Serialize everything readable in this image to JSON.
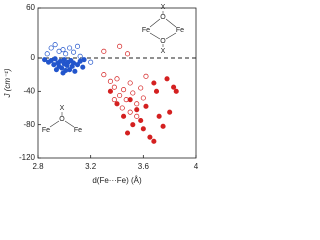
{
  "chart_data": {
    "type": "scatter",
    "xlabel": "d(Fe···Fe) (Å)",
    "ylabel": "J (cm⁻¹)",
    "xlim": [
      2.8,
      4.0
    ],
    "ylim": [
      -120,
      60
    ],
    "xticks": [
      2.8,
      3.2,
      3.6,
      {
        "value": 4.0,
        "label": "4"
      }
    ],
    "yticks": [
      -120,
      -80,
      -40,
      0,
      60
    ],
    "reference_line": 0,
    "series": [
      {
        "name": "blue filled",
        "color": "#2255cc",
        "filled": true,
        "x": [
          2.85,
          2.88,
          2.9,
          2.92,
          2.93,
          2.95,
          2.96,
          2.97,
          2.98,
          3.0,
          3.0,
          3.02,
          3.03,
          3.04,
          3.05,
          3.06,
          3.07,
          3.08,
          3.1,
          3.12,
          3.14,
          2.94,
          2.99,
          3.01,
          3.15
        ],
        "values": [
          -2,
          -5,
          -3,
          -8,
          -1,
          -6,
          -10,
          -4,
          -12,
          -7,
          -2,
          -9,
          -5,
          -14,
          -3,
          -10,
          -6,
          -16,
          -8,
          -4,
          -11,
          -14,
          -18,
          -15,
          -2
        ]
      },
      {
        "name": "blue open",
        "color": "#2255cc",
        "filled": false,
        "x": [
          2.9,
          2.93,
          2.96,
          2.99,
          3.01,
          3.04,
          3.07,
          3.1,
          2.87,
          3.12,
          3.2
        ],
        "values": [
          12,
          16,
          8,
          10,
          5,
          12,
          7,
          14,
          5,
          2,
          -5
        ]
      },
      {
        "name": "red open",
        "color": "#d42020",
        "filled": false,
        "x": [
          3.3,
          3.42,
          3.48,
          3.3,
          3.35,
          3.38,
          3.4,
          3.42,
          3.45,
          3.47,
          3.5,
          3.52,
          3.55,
          3.58,
          3.6,
          3.62,
          3.44,
          3.5,
          3.38,
          3.55
        ],
        "values": [
          8,
          14,
          5,
          -20,
          -28,
          -35,
          -25,
          -45,
          -38,
          -50,
          -30,
          -42,
          -55,
          -36,
          -48,
          -22,
          -60,
          -65,
          -50,
          -70
        ]
      },
      {
        "name": "red filled",
        "color": "#d42020",
        "filled": true,
        "x": [
          3.35,
          3.4,
          3.45,
          3.5,
          3.52,
          3.55,
          3.58,
          3.6,
          3.62,
          3.65,
          3.68,
          3.7,
          3.72,
          3.75,
          3.78,
          3.8,
          3.83,
          3.85,
          3.48,
          3.68
        ],
        "values": [
          -40,
          -55,
          -70,
          -50,
          -80,
          -62,
          -75,
          -85,
          -58,
          -95,
          -30,
          -40,
          -70,
          -82,
          -25,
          -65,
          -35,
          -40,
          -90,
          -100
        ]
      }
    ],
    "annotations": {
      "bridge_top": [
        "X",
        "O",
        "Fe",
        "Fe",
        "O",
        "X"
      ],
      "bridge_bottom": [
        "X",
        "O",
        "Fe",
        "Fe"
      ]
    }
  }
}
